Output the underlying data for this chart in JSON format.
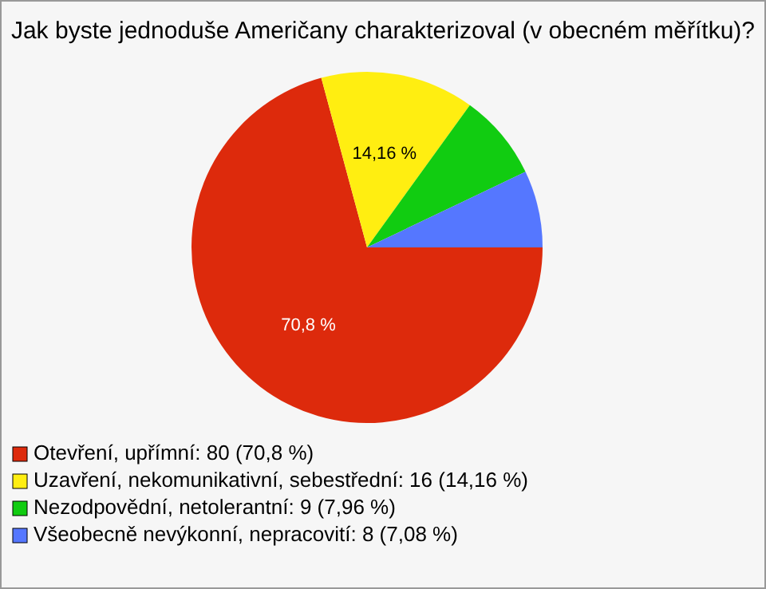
{
  "chart_data": {
    "type": "pie",
    "title": "Jak byste jednoduše Američany charakterizoval (v obecném měřítku)?",
    "categories": [
      "Otevření, upřímní: 80 (70,8 %)",
      "Uzavření, nekomunikativní, sebestřední: 16 (14,16 %)",
      "Nezodpovědní, netolerantní: 9 (7,96 %)",
      "Všeobecně nevýkonní, nepracovití: 8 (7,08 %)"
    ],
    "values": [
      70.8,
      14.16,
      7.96,
      7.08
    ],
    "colors": [
      "#dd2a0c",
      "#ffee11",
      "#11cc11",
      "#5577ff"
    ],
    "value_labels": [
      "70,8 %",
      "14,16 %",
      null,
      null
    ],
    "legend": "bottom"
  }
}
